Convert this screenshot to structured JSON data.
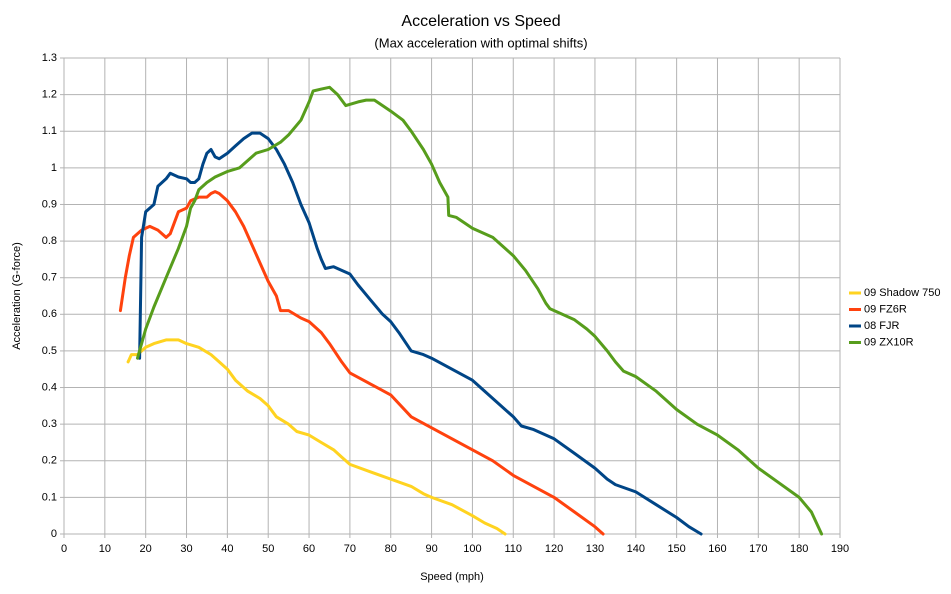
{
  "chart_data": {
    "type": "line",
    "title": "Acceleration vs Speed",
    "subtitle": "(Max acceleration with optimal shifts)",
    "x_label": "Speed (mph)",
    "y_label": "Acceleration (G-force)",
    "xlim": [
      0,
      190
    ],
    "ylim": [
      0,
      1.3
    ],
    "xticks": [
      0,
      10,
      20,
      30,
      40,
      50,
      60,
      70,
      80,
      90,
      100,
      110,
      120,
      130,
      140,
      150,
      160,
      170,
      180,
      190
    ],
    "yticks": [
      0,
      0.1,
      0.2,
      0.3,
      0.4,
      0.5,
      0.6,
      0.7,
      0.8,
      0.9,
      1,
      1.1,
      1.2,
      1.3
    ],
    "grid": true,
    "legend": "right",
    "series": [
      {
        "name": "09 Shadow 750",
        "color": "#ffd320",
        "x": [
          15.7,
          16.5,
          18,
          20,
          22,
          25,
          28,
          30,
          33,
          36,
          38,
          40,
          42,
          45,
          48,
          50,
          52,
          55,
          57,
          60,
          63,
          66,
          68,
          70,
          75,
          80,
          85,
          88,
          90,
          95,
          100,
          103,
          106,
          108
        ],
        "values": [
          0.47,
          0.49,
          0.49,
          0.51,
          0.52,
          0.53,
          0.53,
          0.52,
          0.51,
          0.49,
          0.47,
          0.45,
          0.42,
          0.39,
          0.37,
          0.35,
          0.32,
          0.3,
          0.28,
          0.27,
          0.25,
          0.23,
          0.21,
          0.19,
          0.17,
          0.15,
          0.13,
          0.11,
          0.1,
          0.08,
          0.05,
          0.03,
          0.015,
          0
        ]
      },
      {
        "name": "09 FZ6R",
        "color": "#ff420e",
        "x": [
          13.8,
          15,
          16,
          17,
          19,
          21,
          23,
          25,
          26,
          27,
          28,
          30,
          31,
          33,
          35,
          36,
          37,
          38,
          40,
          42,
          44,
          46,
          48,
          50,
          52,
          53,
          55,
          58,
          60,
          63,
          65,
          68,
          70,
          75,
          80,
          85,
          90,
          95,
          100,
          105,
          110,
          115,
          120,
          125,
          130,
          132
        ],
        "values": [
          0.61,
          0.7,
          0.76,
          0.81,
          0.83,
          0.84,
          0.83,
          0.81,
          0.82,
          0.85,
          0.88,
          0.89,
          0.91,
          0.92,
          0.92,
          0.93,
          0.935,
          0.93,
          0.91,
          0.88,
          0.84,
          0.79,
          0.74,
          0.69,
          0.65,
          0.61,
          0.61,
          0.59,
          0.58,
          0.55,
          0.52,
          0.47,
          0.44,
          0.41,
          0.38,
          0.32,
          0.29,
          0.26,
          0.23,
          0.2,
          0.16,
          0.13,
          0.1,
          0.06,
          0.02,
          0
        ]
      },
      {
        "name": "08 FJR",
        "color": "#004586",
        "x": [
          18.5,
          19,
          20,
          21,
          22,
          23,
          25,
          26,
          28,
          30,
          31,
          32,
          33,
          34,
          35,
          36,
          37,
          38,
          40,
          42,
          44,
          46,
          48,
          50,
          52,
          54,
          56,
          58,
          60,
          62,
          63,
          64,
          66,
          68,
          70,
          72,
          75,
          78,
          80,
          82,
          85,
          88,
          90,
          95,
          100,
          105,
          110,
          112,
          115,
          120,
          125,
          130,
          133,
          135,
          140,
          145,
          150,
          153,
          156
        ],
        "values": [
          0.48,
          0.81,
          0.88,
          0.89,
          0.9,
          0.95,
          0.97,
          0.985,
          0.975,
          0.97,
          0.96,
          0.96,
          0.97,
          1.01,
          1.04,
          1.05,
          1.03,
          1.025,
          1.04,
          1.06,
          1.08,
          1.095,
          1.095,
          1.08,
          1.05,
          1.01,
          0.96,
          0.9,
          0.85,
          0.78,
          0.75,
          0.725,
          0.73,
          0.72,
          0.71,
          0.68,
          0.64,
          0.6,
          0.58,
          0.55,
          0.5,
          0.49,
          0.48,
          0.45,
          0.42,
          0.37,
          0.32,
          0.295,
          0.285,
          0.26,
          0.22,
          0.18,
          0.15,
          0.135,
          0.115,
          0.08,
          0.045,
          0.02,
          0
        ]
      },
      {
        "name": "09 ZX10R",
        "color": "#579d1c",
        "x": [
          18,
          19,
          20,
          22,
          25,
          28,
          30,
          31,
          32,
          33,
          35,
          37,
          40,
          43,
          45,
          47,
          50,
          53,
          55,
          58,
          60,
          61,
          63,
          65,
          67,
          69,
          72,
          74,
          76,
          78,
          80,
          83,
          85,
          88,
          90,
          92,
          94,
          94.2,
          96,
          98,
          100,
          103,
          105,
          108,
          110,
          113,
          116,
          118,
          119,
          122,
          125,
          128,
          130,
          133,
          135,
          137,
          140,
          145,
          150,
          155,
          160,
          165,
          170,
          175,
          180,
          183,
          185.5
        ],
        "values": [
          0.48,
          0.52,
          0.56,
          0.62,
          0.7,
          0.78,
          0.84,
          0.89,
          0.91,
          0.94,
          0.96,
          0.975,
          0.99,
          1,
          1.02,
          1.04,
          1.05,
          1.07,
          1.09,
          1.13,
          1.18,
          1.21,
          1.215,
          1.22,
          1.2,
          1.17,
          1.18,
          1.185,
          1.185,
          1.17,
          1.155,
          1.13,
          1.1,
          1.05,
          1.01,
          0.96,
          0.92,
          0.87,
          0.865,
          0.85,
          0.835,
          0.82,
          0.81,
          0.78,
          0.76,
          0.72,
          0.67,
          0.63,
          0.615,
          0.6,
          0.585,
          0.56,
          0.54,
          0.5,
          0.47,
          0.445,
          0.43,
          0.39,
          0.34,
          0.3,
          0.27,
          0.23,
          0.18,
          0.14,
          0.1,
          0.06,
          0
        ]
      }
    ]
  }
}
